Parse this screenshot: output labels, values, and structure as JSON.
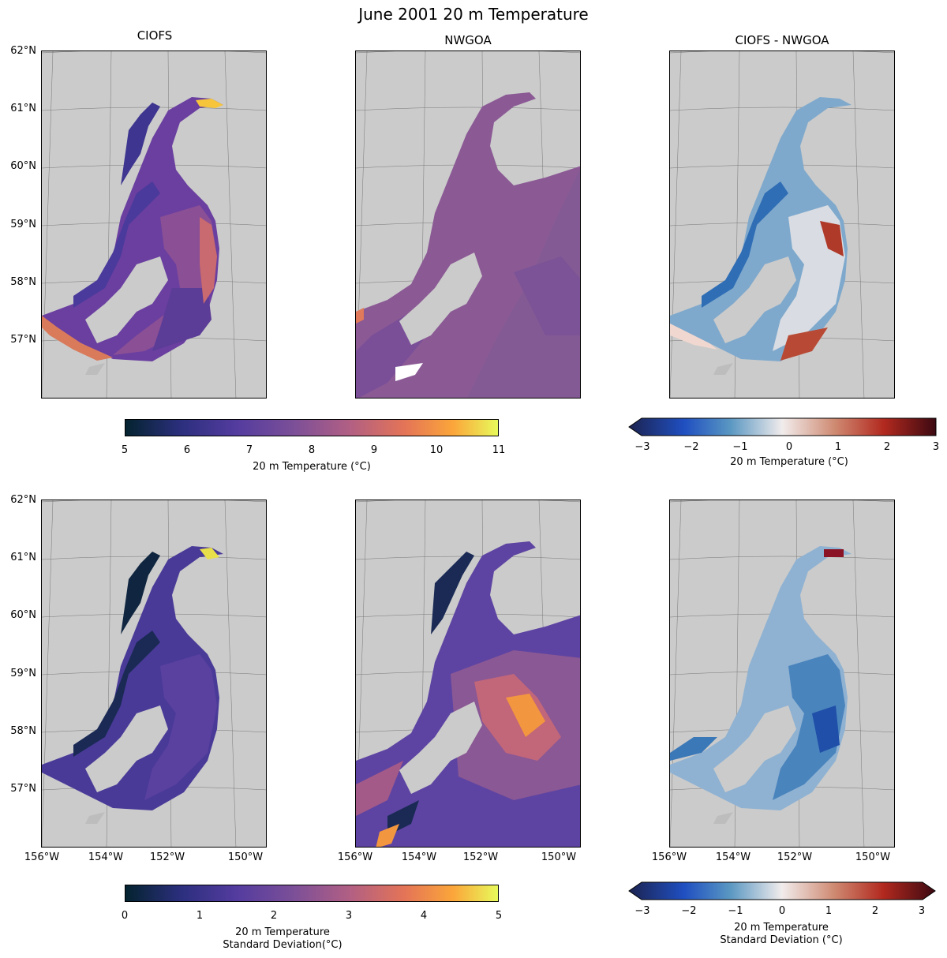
{
  "title": "June 2001 20 m Temperature",
  "column_titles": [
    "CIOFS",
    "NWGOA",
    "CIOFS - NWGOA"
  ],
  "lat_labels": [
    "62°N",
    "61°N",
    "60°N",
    "59°N",
    "58°N",
    "57°N"
  ],
  "lon_labels": [
    "156°W",
    "154°W",
    "152°W",
    "150°W"
  ],
  "colorbars": {
    "temp": {
      "label": "20 m Temperature (°C)",
      "ticks": [
        "5",
        "6",
        "7",
        "8",
        "9",
        "10",
        "11"
      ],
      "range": [
        5,
        11
      ],
      "colormap": "thermal"
    },
    "diff_temp": {
      "label": "20 m Temperature (°C)",
      "ticks": [
        "−3",
        "−2",
        "−1",
        "0",
        "1",
        "2",
        "3"
      ],
      "range": [
        -3,
        3
      ],
      "colormap": "balance"
    },
    "std": {
      "label_line1": "20 m Temperature",
      "label_line2": "Standard Deviation(°C)",
      "ticks": [
        "0",
        "1",
        "2",
        "3",
        "4",
        "5"
      ],
      "range": [
        0,
        5
      ],
      "colormap": "thermal"
    },
    "diff_std": {
      "label_line1": "20 m Temperature",
      "label_line2": "Standard Deviation (°C)",
      "ticks": [
        "−3",
        "−2",
        "−1",
        "0",
        "1",
        "2",
        "3"
      ],
      "range": [
        -3,
        3
      ],
      "colormap": "balance"
    }
  },
  "colors": {
    "land": "#cbcbcb",
    "thermal_low": "#04232f",
    "thermal_mid": "#7d4f98",
    "thermal_high": "#e8fa5b",
    "balance_low": "#1c2350",
    "balance_mid": "#f1ecec",
    "balance_high": "#3c0911"
  }
}
